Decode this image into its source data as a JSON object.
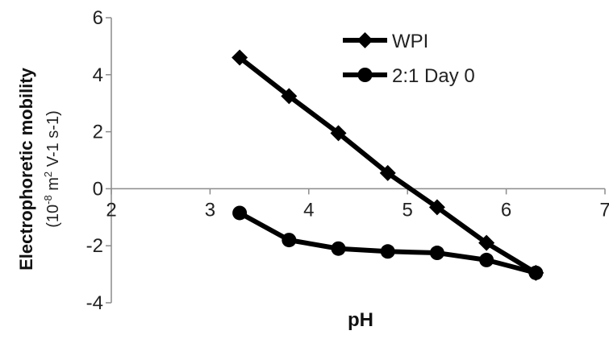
{
  "chart_data": {
    "type": "line",
    "xlabel": "pH",
    "ylabel": "Electrophoretic mobility",
    "ylabel_unit": {
      "prefix": "(10",
      "exp1": "-8",
      "mid": " m",
      "exp2": "2",
      "suffix": " V-1 s-1)"
    },
    "xlim": [
      2,
      7
    ],
    "ylim": [
      -4,
      6
    ],
    "x_ticks": [
      "2",
      "3",
      "4",
      "5",
      "6",
      "7"
    ],
    "y_ticks": [
      "6",
      "4",
      "2",
      "0",
      "-2",
      "-4"
    ],
    "x_tick_values": [
      2,
      3,
      4,
      5,
      6,
      7
    ],
    "y_tick_values": [
      6,
      4,
      2,
      0,
      -2,
      -4
    ],
    "grid": false,
    "legend_position": "top-right",
    "series": [
      {
        "name": "WPI",
        "marker": "diamond",
        "color": "#000000",
        "x": [
          3.3,
          3.8,
          4.3,
          4.8,
          5.3,
          5.8,
          6.3
        ],
        "y": [
          4.6,
          3.25,
          1.95,
          0.55,
          -0.65,
          -1.9,
          -2.95
        ]
      },
      {
        "name": "2:1 Day 0",
        "marker": "circle",
        "color": "#000000",
        "x": [
          3.3,
          3.8,
          4.3,
          4.8,
          5.3,
          5.8,
          6.3
        ],
        "y": [
          -0.85,
          -1.8,
          -2.1,
          -2.2,
          -2.25,
          -2.5,
          -2.95
        ]
      }
    ]
  }
}
